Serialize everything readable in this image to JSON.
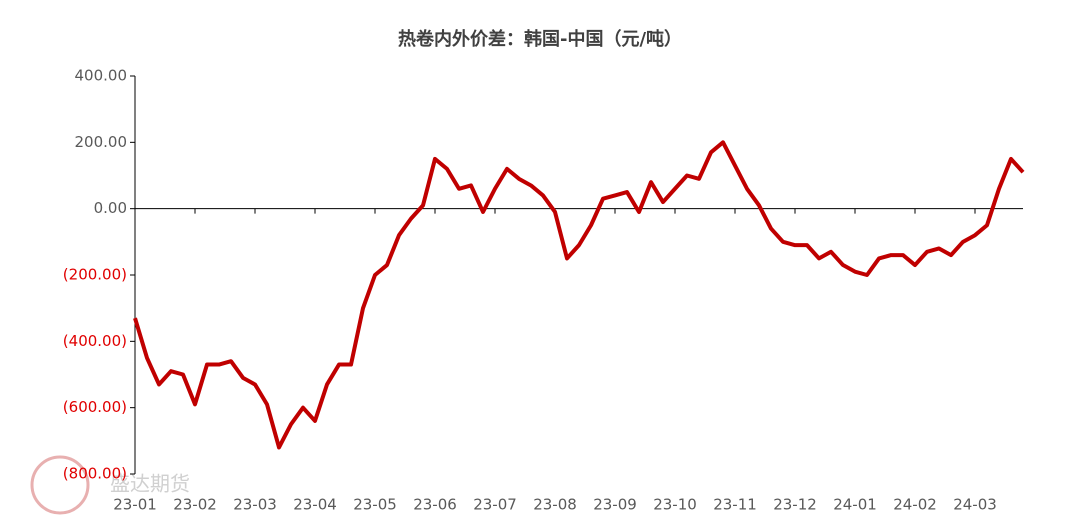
{
  "chart_data": {
    "type": "line",
    "title": "热卷内外价差：韩国-中国（元/吨）",
    "watermark": "盛达期货",
    "categories": [
      "23-01",
      null,
      null,
      null,
      null,
      "23-02",
      null,
      null,
      null,
      null,
      "23-03",
      null,
      null,
      null,
      null,
      "23-04",
      null,
      null,
      null,
      null,
      "23-05",
      null,
      null,
      null,
      null,
      "23-06",
      null,
      null,
      null,
      null,
      "23-07",
      null,
      null,
      null,
      null,
      "23-08",
      null,
      null,
      null,
      null,
      "23-09",
      null,
      null,
      null,
      null,
      "23-10",
      null,
      null,
      null,
      null,
      "23-11",
      null,
      null,
      null,
      null,
      "23-12",
      null,
      null,
      null,
      null,
      "24-01",
      null,
      null,
      null,
      null,
      "24-02",
      null,
      null,
      null,
      null,
      "24-03",
      null,
      null,
      null,
      null
    ],
    "series": [
      {
        "name": "韩国-中国",
        "color": "#c00000",
        "values": [
          -330,
          -450,
          -530,
          -490,
          -500,
          -590,
          -470,
          -470,
          -460,
          -510,
          -530,
          -590,
          -720,
          -650,
          -600,
          -640,
          -530,
          -470,
          -470,
          -300,
          -200,
          -170,
          -80,
          -30,
          10,
          150,
          120,
          60,
          70,
          -10,
          60,
          120,
          90,
          70,
          40,
          -10,
          -150,
          -110,
          -50,
          30,
          40,
          50,
          -10,
          80,
          20,
          60,
          100,
          90,
          170,
          200,
          130,
          60,
          10,
          -60,
          -100,
          -110,
          -110,
          -150,
          -130,
          -170,
          -190,
          -200,
          -150,
          -140,
          -140,
          -170,
          -130,
          -120,
          -140,
          -100,
          -80,
          -50,
          60,
          150,
          110
        ]
      }
    ],
    "ylim": [
      -800,
      400
    ],
    "yticks": [
      {
        "value": -800,
        "label": "(800.00)"
      },
      {
        "value": -600,
        "label": "(600.00)"
      },
      {
        "value": -400,
        "label": "(400.00)"
      },
      {
        "value": -200,
        "label": "(200.00)"
      },
      {
        "value": 0,
        "label": "0.00"
      },
      {
        "value": 200,
        "label": "200.00"
      },
      {
        "value": 400,
        "label": "400.00"
      }
    ]
  }
}
